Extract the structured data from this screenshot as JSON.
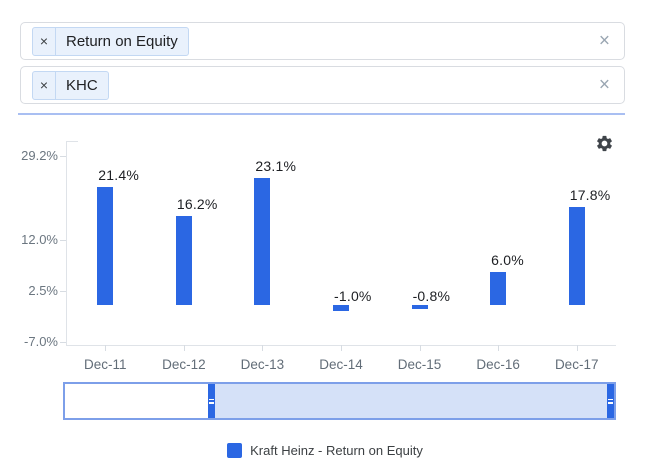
{
  "filters": {
    "metric": {
      "tag": "Return on Equity",
      "remove_glyph": "×",
      "clear_glyph": "×"
    },
    "ticker": {
      "tag": "KHC",
      "remove_glyph": "×",
      "clear_glyph": "×"
    }
  },
  "toolbar": {
    "settings_icon": "gear"
  },
  "chart_data": {
    "type": "bar",
    "title": "",
    "xlabel": "",
    "ylabel": "",
    "categories": [
      "Dec-11",
      "Dec-12",
      "Dec-13",
      "Dec-14",
      "Dec-15",
      "Dec-16",
      "Dec-17"
    ],
    "series": [
      {
        "name": "Kraft Heinz - Return on Equity",
        "values": [
          21.4,
          16.2,
          23.1,
          -1.0,
          -0.8,
          6.0,
          17.8
        ],
        "color": "#2b67e3"
      }
    ],
    "data_labels": [
      "21.4%",
      "16.2%",
      "23.1%",
      "-1.0%",
      "-0.8%",
      "6.0%",
      "17.8%"
    ],
    "y_ticks": [
      {
        "value": 29.2,
        "label": "29.2%"
      },
      {
        "value": 12.0,
        "label": "12.0%"
      },
      {
        "value": 2.5,
        "label": "2.5%"
      },
      {
        "value": -7.0,
        "label": "-7.0%"
      }
    ],
    "ylim": [
      -9.5,
      31.5
    ],
    "grid": false,
    "legend_position": "bottom",
    "colors": {
      "bar": "#2b67e3",
      "axis": "#dfe3e8",
      "tick_label": "#6b7680",
      "slider_selected": "#d5e1f8",
      "slider_border": "#7d9fe9",
      "divider": "#a9bff2"
    }
  }
}
